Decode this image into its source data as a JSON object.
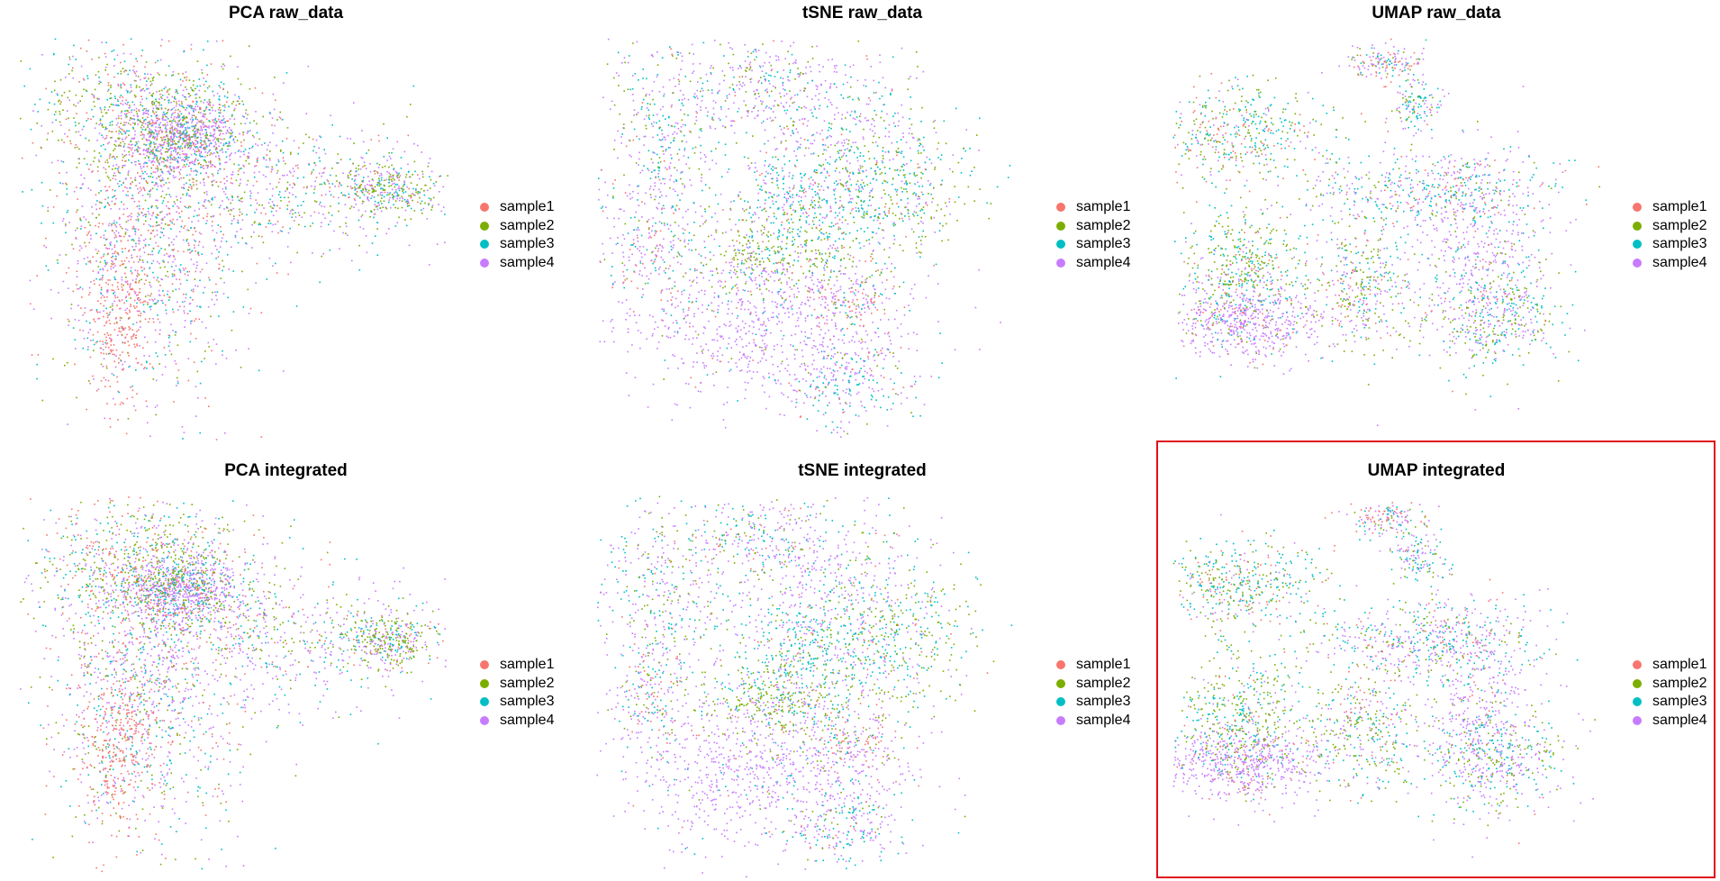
{
  "colors": {
    "sample1": "#F8766D",
    "sample2": "#7CAE00",
    "sample3": "#00BFC4",
    "sample4": "#C77CFF",
    "highlight": "#E0101A"
  },
  "highlighted_panel": "UMAP integrated",
  "chart_data": [
    {
      "type": "scatter",
      "title": "PCA raw_data",
      "method": "PCA",
      "xlabel": "",
      "ylabel": "",
      "grid": false,
      "legend": "right",
      "series": [
        {
          "name": "sample1",
          "color": "#F8766D"
        },
        {
          "name": "sample2",
          "color": "#7CAE00"
        },
        {
          "name": "sample3",
          "color": "#00BFC4"
        },
        {
          "name": "sample4",
          "color": "#C77CFF"
        }
      ]
    },
    {
      "type": "scatter",
      "title": "tSNE raw_data",
      "method": "tSNE",
      "xlabel": "",
      "ylabel": "",
      "grid": false,
      "legend": "right",
      "series": [
        {
          "name": "sample1",
          "color": "#F8766D"
        },
        {
          "name": "sample2",
          "color": "#7CAE00"
        },
        {
          "name": "sample3",
          "color": "#00BFC4"
        },
        {
          "name": "sample4",
          "color": "#C77CFF"
        }
      ]
    },
    {
      "type": "scatter",
      "title": "UMAP raw_data",
      "method": "UMAP",
      "xlabel": "",
      "ylabel": "",
      "grid": false,
      "legend": "right",
      "series": [
        {
          "name": "sample1",
          "color": "#F8766D"
        },
        {
          "name": "sample2",
          "color": "#7CAE00"
        },
        {
          "name": "sample3",
          "color": "#00BFC4"
        },
        {
          "name": "sample4",
          "color": "#C77CFF"
        }
      ]
    },
    {
      "type": "scatter",
      "title": "PCA integrated",
      "method": "PCA",
      "xlabel": "",
      "ylabel": "",
      "grid": false,
      "legend": "right",
      "series": [
        {
          "name": "sample1",
          "color": "#F8766D"
        },
        {
          "name": "sample2",
          "color": "#7CAE00"
        },
        {
          "name": "sample3",
          "color": "#00BFC4"
        },
        {
          "name": "sample4",
          "color": "#C77CFF"
        }
      ]
    },
    {
      "type": "scatter",
      "title": "tSNE integrated",
      "method": "tSNE",
      "xlabel": "",
      "ylabel": "",
      "grid": false,
      "legend": "right",
      "series": [
        {
          "name": "sample1",
          "color": "#F8766D"
        },
        {
          "name": "sample2",
          "color": "#7CAE00"
        },
        {
          "name": "sample3",
          "color": "#00BFC4"
        },
        {
          "name": "sample4",
          "color": "#C77CFF"
        }
      ]
    },
    {
      "type": "scatter",
      "title": "UMAP integrated",
      "method": "UMAP",
      "xlabel": "",
      "ylabel": "",
      "grid": false,
      "legend": "right",
      "series": [
        {
          "name": "sample1",
          "color": "#F8766D"
        },
        {
          "name": "sample2",
          "color": "#7CAE00"
        },
        {
          "name": "sample3",
          "color": "#00BFC4"
        },
        {
          "name": "sample4",
          "color": "#C77CFF"
        }
      ]
    }
  ]
}
